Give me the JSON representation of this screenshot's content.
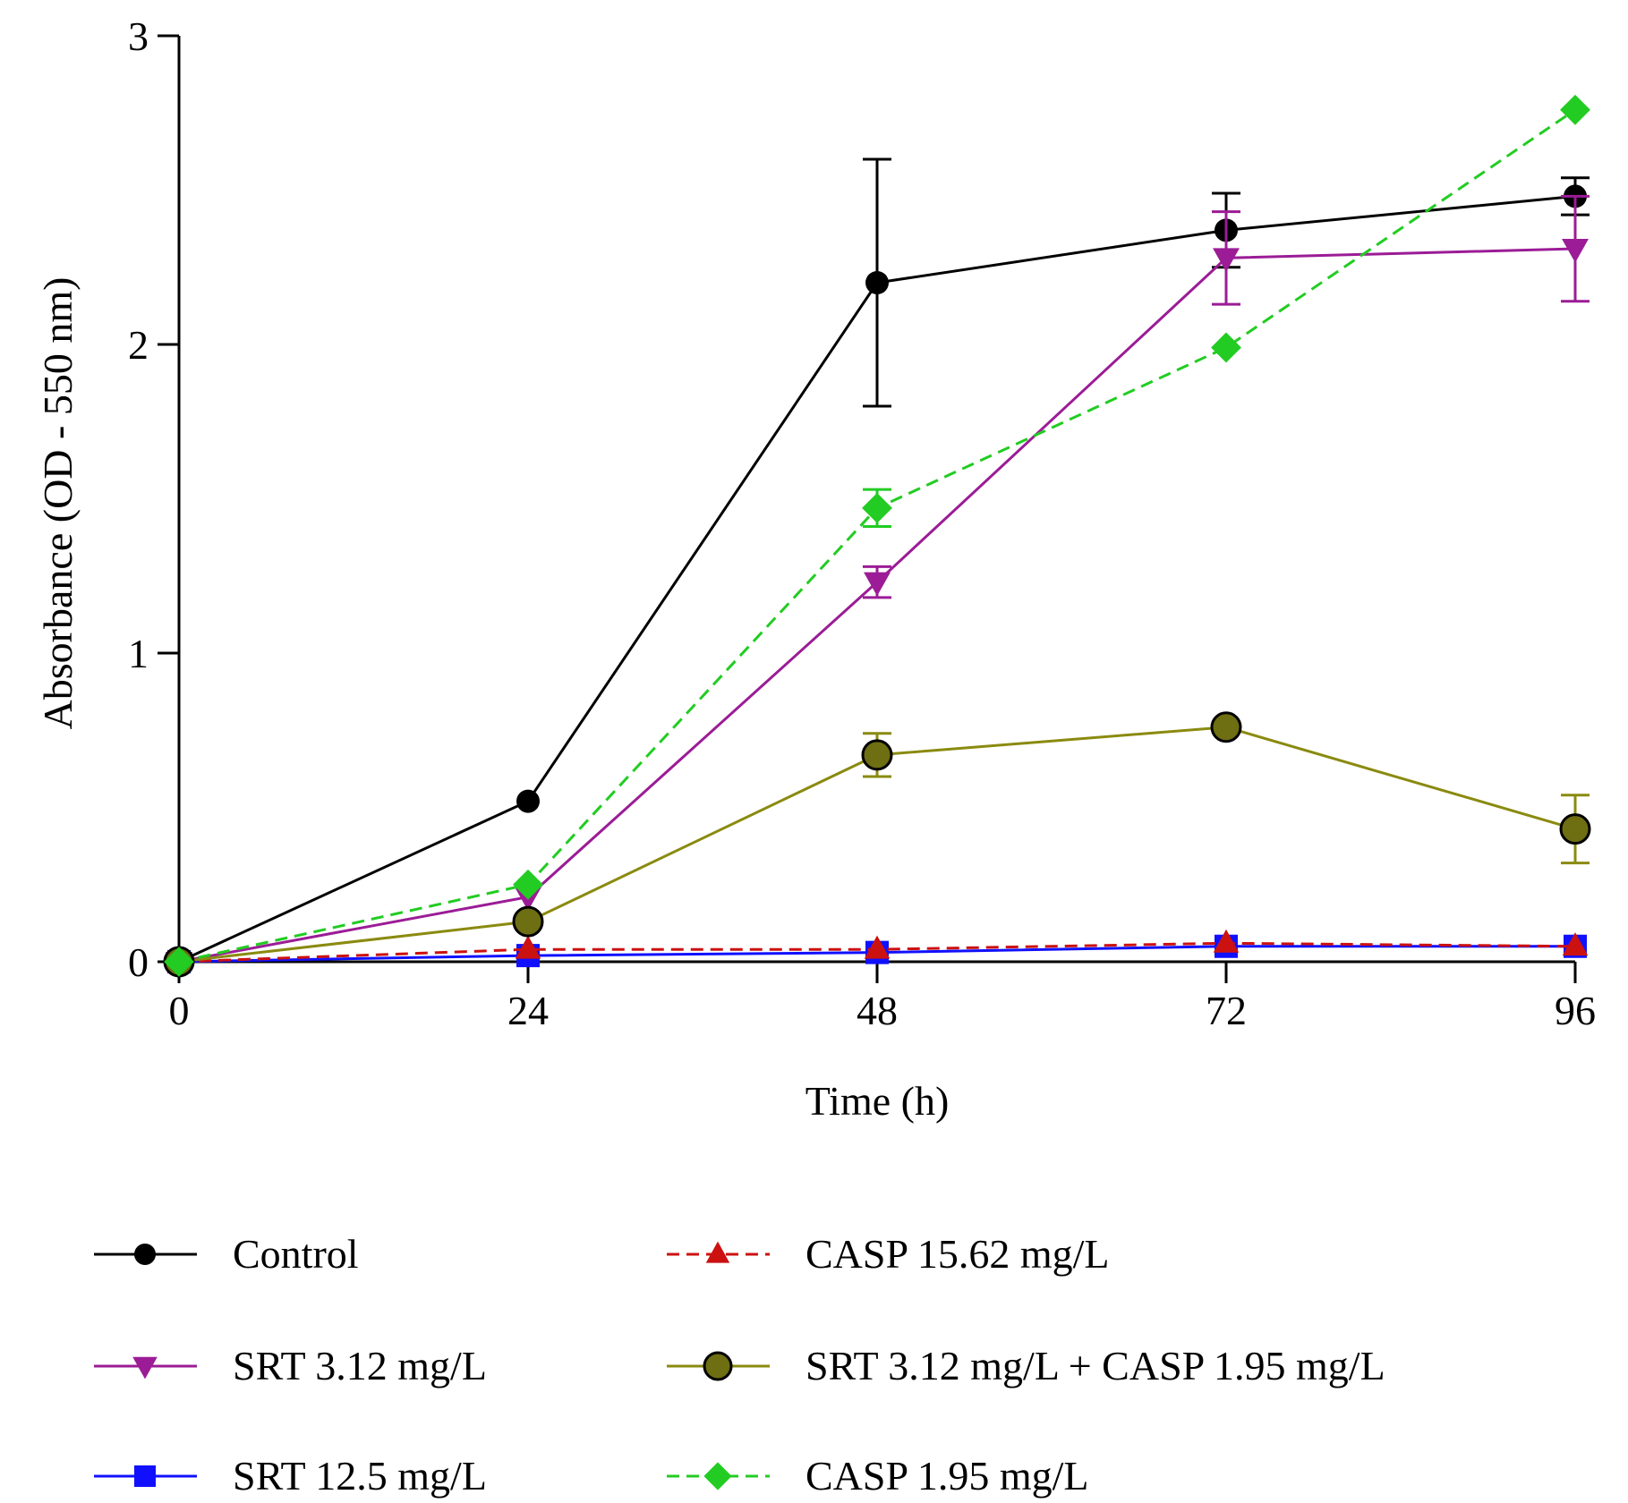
{
  "chart_data": {
    "type": "line",
    "title": "",
    "xlabel": "Time (h)",
    "ylabel": "Absorbance (OD - 550 nm)",
    "x": [
      0,
      24,
      48,
      72,
      96
    ],
    "xticks": [
      "0",
      "24",
      "48",
      "72",
      "96"
    ],
    "yticks": [
      "0",
      "1",
      "2",
      "3"
    ],
    "xlim": [
      0,
      96
    ],
    "ylim": [
      0,
      3
    ],
    "grid": false,
    "legend_position": "bottom",
    "series": [
      {
        "name": "Control",
        "color": "#000000",
        "marker": "circle",
        "dashed": false,
        "values": [
          0,
          0.52,
          2.2,
          2.37,
          2.48
        ],
        "errors": [
          0,
          0,
          0.4,
          0.12,
          0.06
        ]
      },
      {
        "name": "SRT 3.12 mg/L",
        "color": "#9b1c96",
        "marker": "triangle-down",
        "dashed": false,
        "values": [
          0,
          0.21,
          1.23,
          2.28,
          2.31
        ],
        "errors": [
          0,
          0,
          0.05,
          0.15,
          0.17
        ]
      },
      {
        "name": "SRT 12.5 mg/L",
        "color": "#1010ff",
        "marker": "square",
        "dashed": false,
        "values": [
          0,
          0.02,
          0.03,
          0.05,
          0.05
        ],
        "errors": [
          0,
          0,
          0,
          0,
          0
        ]
      },
      {
        "name": "CASP 15.62 mg/L",
        "color": "#cc1111",
        "marker": "triangle-up",
        "dashed": true,
        "values": [
          0,
          0.04,
          0.04,
          0.06,
          0.05
        ],
        "errors": [
          0,
          0,
          0,
          0,
          0
        ]
      },
      {
        "name": "SRT 3.12 mg/L + CASP 1.95 mg/L",
        "color": "#8a8a10",
        "marker": "circle-olive",
        "dashed": false,
        "values": [
          0,
          0.13,
          0.67,
          0.76,
          0.43
        ],
        "errors": [
          0,
          0,
          0.07,
          0,
          0.11
        ]
      },
      {
        "name": "CASP 1.95 mg/L",
        "color": "#22cc22",
        "marker": "diamond",
        "dashed": true,
        "values": [
          0,
          0.25,
          1.47,
          1.99,
          2.76
        ],
        "errors": [
          0,
          0,
          0.06,
          0,
          0
        ]
      }
    ]
  }
}
